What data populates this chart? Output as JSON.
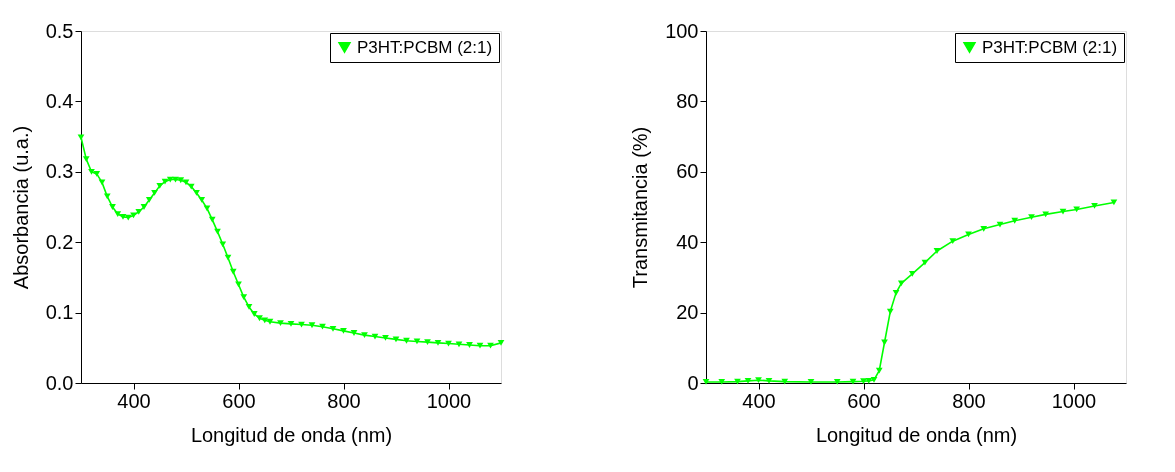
{
  "chart_data": [
    {
      "type": "line",
      "xlabel": "Longitud de onda (nm)",
      "ylabel": "Absorbancia (u.a.)",
      "xlim": [
        300,
        1100
      ],
      "xticks": [
        400,
        600,
        800,
        1000
      ],
      "ylim": [
        0,
        0.5
      ],
      "yticks": [
        {
          "value": 0,
          "label": "0.0"
        },
        0.1,
        0.2,
        0.3,
        0.4,
        0.5
      ],
      "grid": false,
      "legend": "top right",
      "marker": "triangle",
      "line_style": "solid",
      "x": [
        300,
        310,
        320,
        330,
        340,
        350,
        360,
        370,
        380,
        390,
        400,
        410,
        420,
        430,
        440,
        450,
        460,
        470,
        480,
        490,
        500,
        510,
        520,
        530,
        540,
        550,
        560,
        570,
        580,
        590,
        600,
        610,
        620,
        630,
        640,
        650,
        660,
        680,
        700,
        720,
        740,
        760,
        780,
        800,
        820,
        840,
        860,
        880,
        900,
        920,
        940,
        960,
        980,
        1000,
        1020,
        1040,
        1060,
        1080,
        1100
      ],
      "series": [
        {
          "name": "P3HT:PCBM (2:1)",
          "color": "#00ff00",
          "values": [
            0.349,
            0.318,
            0.3,
            0.297,
            0.285,
            0.265,
            0.25,
            0.24,
            0.236,
            0.235,
            0.238,
            0.243,
            0.25,
            0.26,
            0.27,
            0.28,
            0.286,
            0.289,
            0.289,
            0.288,
            0.285,
            0.279,
            0.27,
            0.26,
            0.248,
            0.232,
            0.215,
            0.197,
            0.178,
            0.158,
            0.14,
            0.122,
            0.108,
            0.098,
            0.092,
            0.089,
            0.087,
            0.085,
            0.084,
            0.083,
            0.082,
            0.08,
            0.077,
            0.074,
            0.071,
            0.068,
            0.066,
            0.064,
            0.062,
            0.06,
            0.059,
            0.058,
            0.057,
            0.056,
            0.055,
            0.054,
            0.053,
            0.053,
            0.057
          ]
        }
      ]
    },
    {
      "type": "line",
      "xlabel": "Longitud de onda (nm)",
      "ylabel": "Transmitancia (%)",
      "xlim": [
        300,
        1100
      ],
      "xticks": [
        400,
        600,
        800,
        1000
      ],
      "ylim": [
        0,
        100
      ],
      "yticks": [
        0,
        20,
        40,
        60,
        80,
        100
      ],
      "grid": false,
      "legend": "top right",
      "marker": "triangle",
      "line_style": "solid",
      "x": [
        300,
        330,
        360,
        380,
        400,
        420,
        450,
        500,
        550,
        580,
        600,
        610,
        620,
        630,
        640,
        651,
        662,
        672,
        693,
        717,
        740,
        770,
        800,
        829,
        860,
        888,
        920,
        947,
        980,
        1006,
        1040,
        1077
      ],
      "series": [
        {
          "name": "P3HT:PCBM (2:1)",
          "color": "#00ff00",
          "values": [
            0.3,
            0.3,
            0.4,
            0.6,
            0.8,
            0.6,
            0.4,
            0.3,
            0.3,
            0.4,
            0.5,
            0.6,
            0.9,
            3.5,
            11.5,
            20.3,
            25.6,
            28.3,
            31.0,
            34.2,
            37.5,
            40.3,
            42.2,
            43.8,
            45.0,
            46.1,
            47.1,
            47.9,
            48.7,
            49.3,
            50.3,
            51.3
          ]
        }
      ]
    }
  ]
}
